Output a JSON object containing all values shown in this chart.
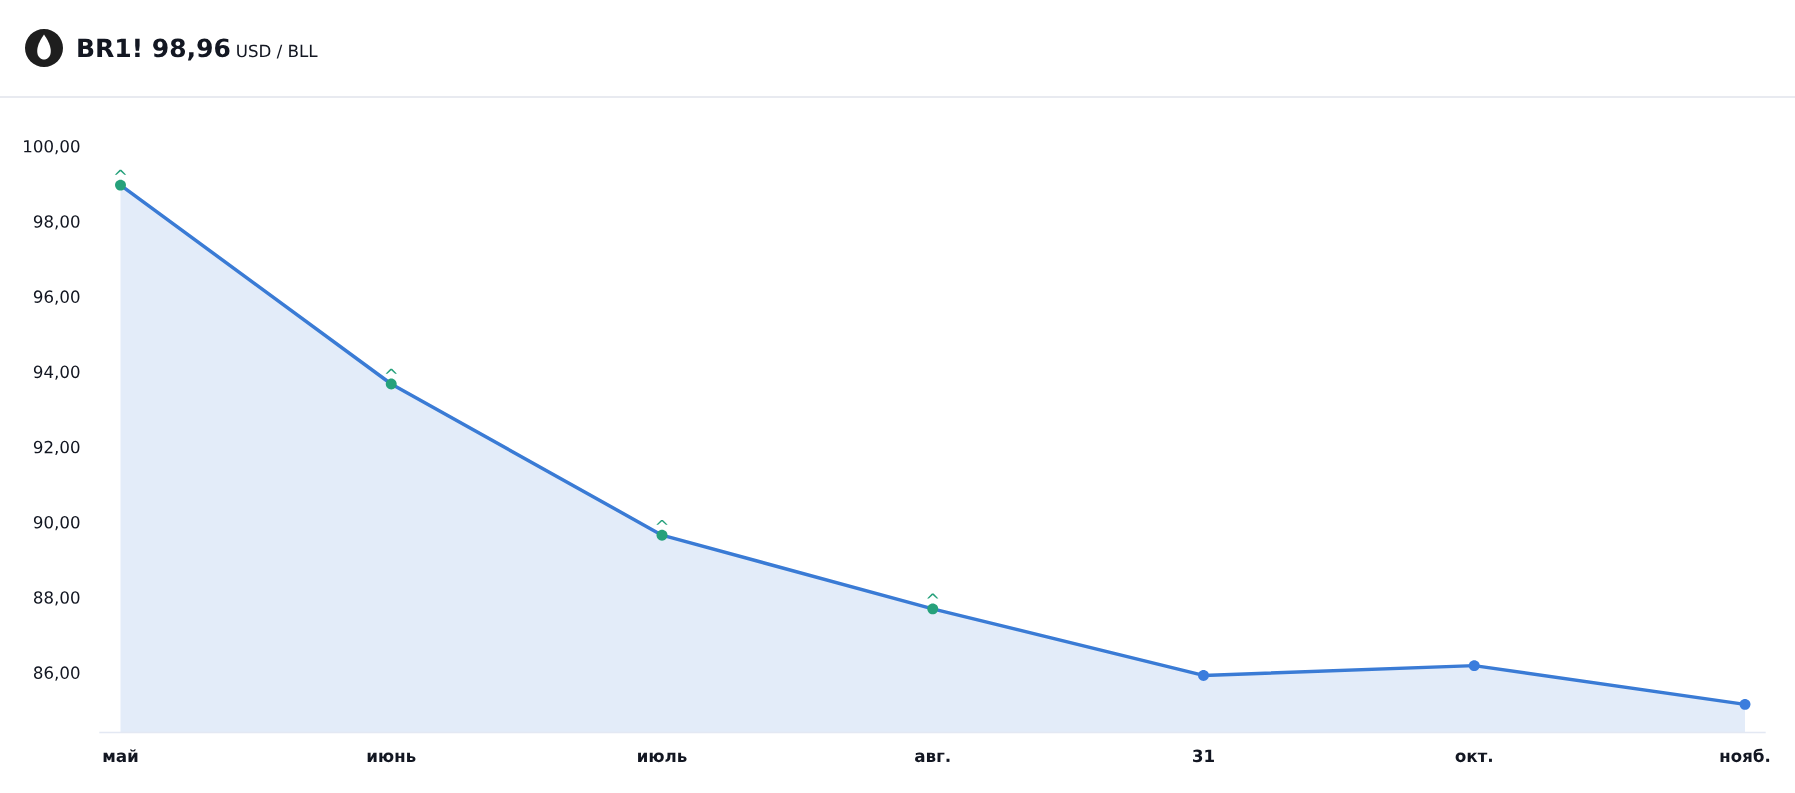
{
  "chart_data": {
    "type": "area",
    "title": "BR1! 98,96",
    "subtitle": "USD / BLL",
    "categories": [
      "май",
      "июнь",
      "июль",
      "авг.",
      "31",
      "окт.",
      "нояб."
    ],
    "series": [
      {
        "color": "#3a7bd5",
        "colors": [
          "#26a17b",
          "#26a17b",
          "#26a17b",
          "#26a17b",
          "#3b7ddd",
          "#3b7ddd",
          "#3b7ddd"
        ],
        "values": [
          98.96,
          93.67,
          89.65,
          87.69,
          85.92,
          86.18,
          85.15
        ]
      }
    ],
    "ylim": [
      84.4,
      100
    ],
    "yticks": [
      {
        "value": 86,
        "label": "86,00"
      },
      {
        "value": 88,
        "label": "88,00"
      },
      {
        "value": 90,
        "label": "90,00"
      },
      {
        "value": 92,
        "label": "92,00"
      },
      {
        "value": 94,
        "label": "94,00"
      },
      {
        "value": 96,
        "label": "96,00"
      },
      {
        "value": 98,
        "label": "98,00"
      },
      {
        "value": 100,
        "label": "100,00"
      }
    ],
    "marker": "circle",
    "line_style": "solid",
    "annotations": [
      {
        "text": "^",
        "x": "май",
        "y": 98.96
      },
      {
        "text": "^",
        "x": "июнь",
        "y": 93.67
      },
      {
        "text": "^",
        "x": "июль",
        "y": 89.65
      },
      {
        "text": "^",
        "x": "авг.",
        "y": 87.69
      }
    ]
  }
}
